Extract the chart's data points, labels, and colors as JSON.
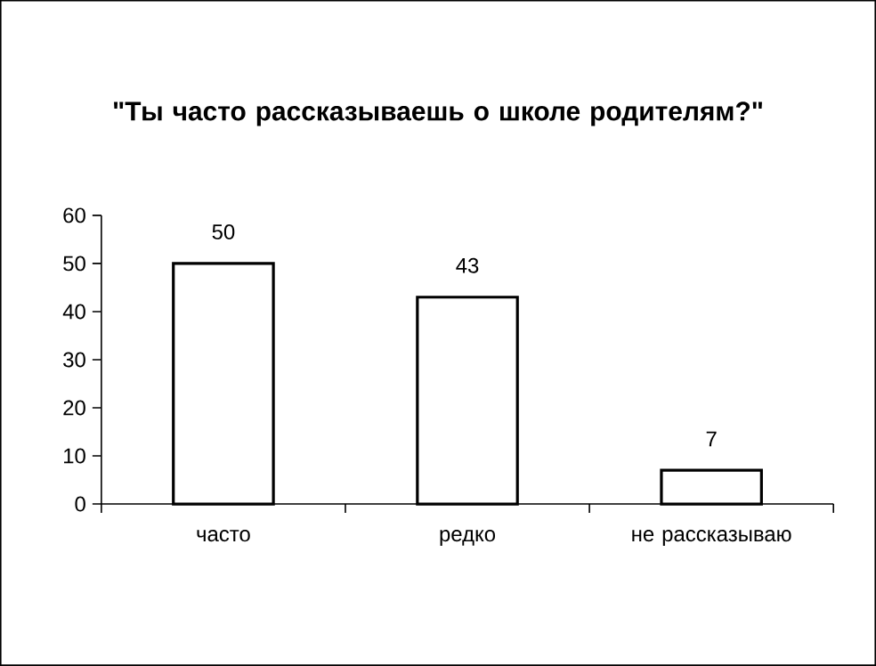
{
  "chart_data": {
    "type": "bar",
    "title": "\"Ты часто рассказываешь о школе родителям?\"",
    "categories": [
      "часто",
      "редко",
      "не рассказываю"
    ],
    "values": [
      50,
      43,
      7
    ],
    "color": "#ffffff",
    "ylim": [
      0,
      60
    ],
    "yticks": [
      0,
      10,
      20,
      30,
      40,
      50,
      60
    ],
    "data_labels": true
  }
}
